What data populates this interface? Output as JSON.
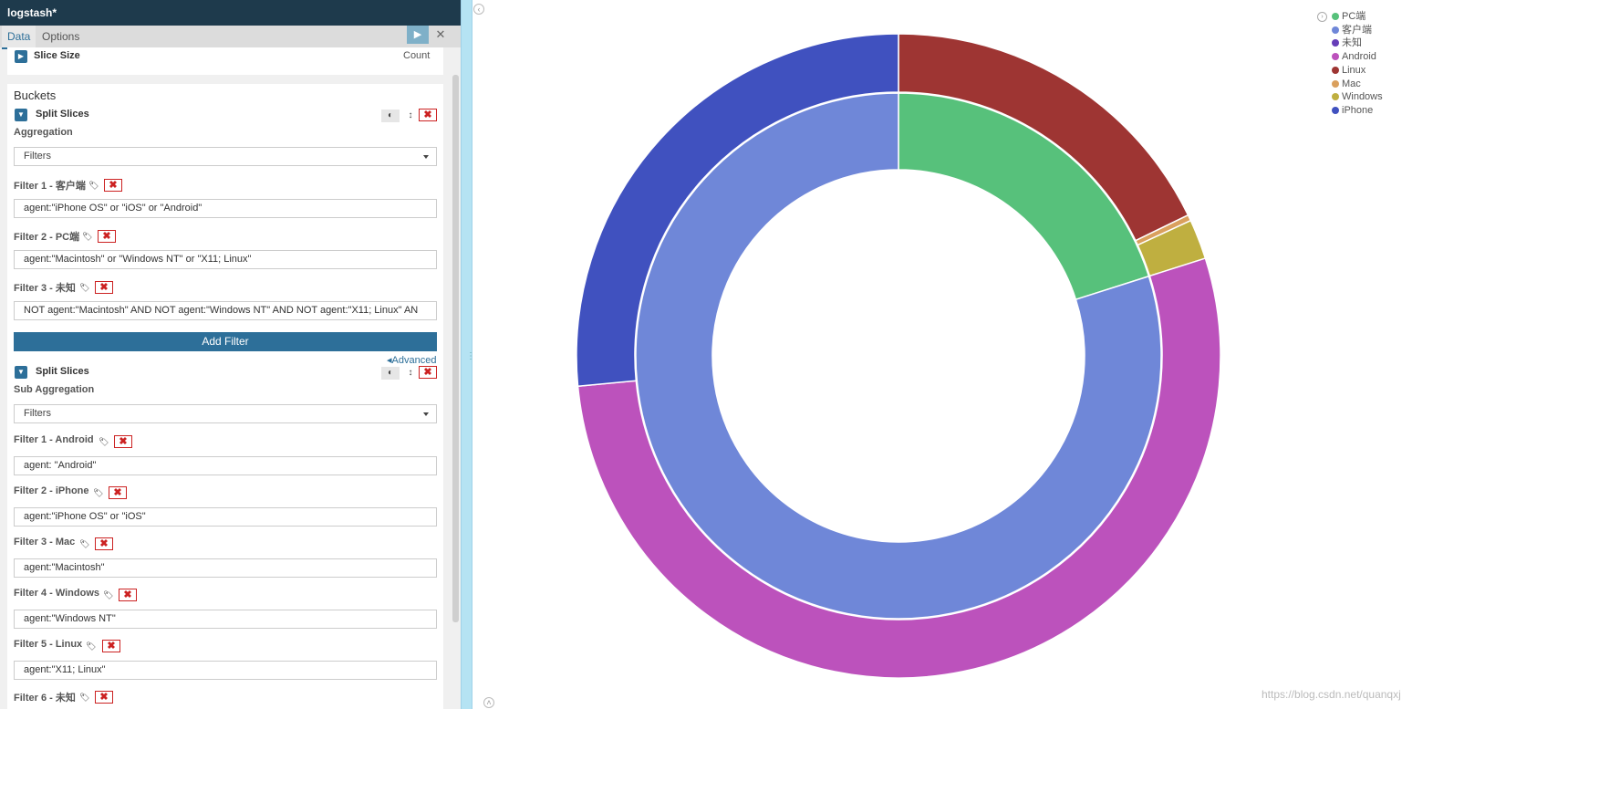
{
  "window": {
    "title": "logstash*"
  },
  "tabs": {
    "data": "Data",
    "options": "Options"
  },
  "toolbar": {
    "run_icon": "play-icon",
    "close_icon": "close-icon"
  },
  "metrics": {
    "slice_size_label": "Slice Size",
    "slice_size_value": "Count"
  },
  "buckets": {
    "title": "Buckets",
    "split1": {
      "label": "Split Slices",
      "aggregation_label": "Aggregation",
      "aggregation_value": "Filters",
      "filters": [
        {
          "label": "Filter 1 - 客户端",
          "query": "agent:\"iPhone OS\" or  \"iOS\" or \"Android\""
        },
        {
          "label": "Filter 2 - PC端",
          "query": "agent:\"Macintosh\" or  \"Windows NT\" or  \"X11; Linux\""
        },
        {
          "label": "Filter 3 - 未知",
          "query": "NOT agent:\"Macintosh\" AND NOT agent:\"Windows NT\" AND NOT agent:\"X11; Linux\"  AN"
        }
      ],
      "add_filter": "Add Filter",
      "advanced": "Advanced"
    },
    "split2": {
      "label": "Split Slices",
      "aggregation_label": "Sub Aggregation",
      "aggregation_value": "Filters",
      "filters": [
        {
          "label": "Filter 1 - Android",
          "query": "agent: \"Android\""
        },
        {
          "label": "Filter 2 - iPhone",
          "query": "agent:\"iPhone OS\" or  \"iOS\""
        },
        {
          "label": "Filter 3 - Mac",
          "query": "agent:\"Macintosh\""
        },
        {
          "label": "Filter 4 - Windows",
          "query": "agent:\"Windows NT\""
        },
        {
          "label": "Filter 5 - Linux",
          "query": "agent:\"X11; Linux\""
        },
        {
          "label": "Filter 6 - 未知",
          "query": ""
        }
      ]
    }
  },
  "legend": [
    {
      "label": "PC端",
      "color": "#57c17b"
    },
    {
      "label": "客户端",
      "color": "#6f87d8"
    },
    {
      "label": "未知",
      "color": "#663db8"
    },
    {
      "label": "Android",
      "color": "#bc52bc"
    },
    {
      "label": "Linux",
      "color": "#9e3533"
    },
    {
      "label": "Mac",
      "color": "#daa05d"
    },
    {
      "label": "Windows",
      "color": "#bfaf40"
    },
    {
      "label": "iPhone",
      "color": "#4051bf"
    }
  ],
  "chart_data": {
    "type": "pie",
    "donut": true,
    "inner_ring": [
      {
        "name": "PC端",
        "value": 20.1,
        "color": "#57c17b"
      },
      {
        "name": "客户端",
        "value": 79.9,
        "color": "#6f87d8"
      }
    ],
    "outer_ring": [
      {
        "name": "Linux",
        "value": 17.8,
        "color": "#9e3533"
      },
      {
        "name": "Mac",
        "value": 0.3,
        "color": "#daa05d"
      },
      {
        "name": "Windows",
        "value": 2.0,
        "color": "#bfaf40"
      },
      {
        "name": "Android",
        "value": 53.4,
        "color": "#bc52bc"
      },
      {
        "name": "iPhone",
        "value": 26.5,
        "color": "#4051bf"
      }
    ]
  },
  "watermark": "https://blog.csdn.net/quanqxj"
}
